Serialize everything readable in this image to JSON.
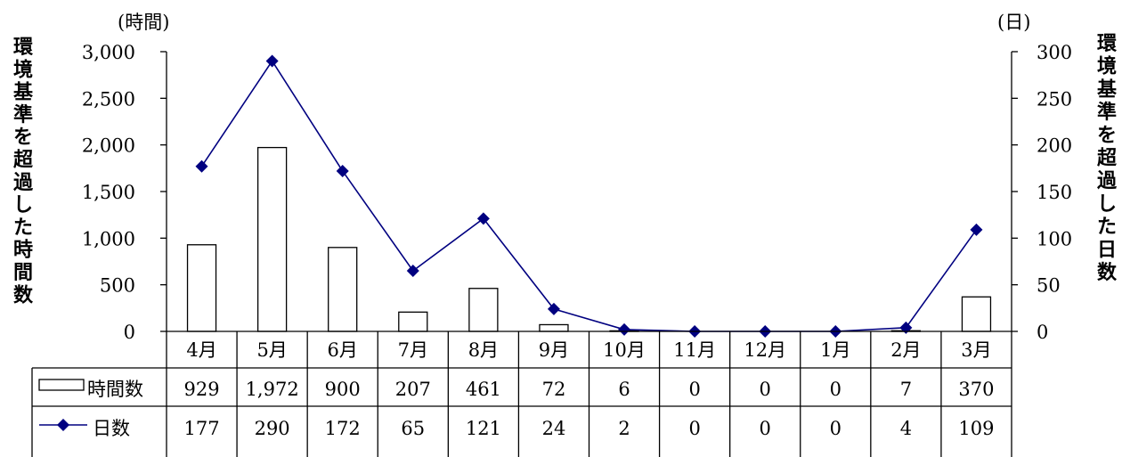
{
  "chart_data": {
    "type": "bar+line",
    "left_unit": "(時間)",
    "right_unit": "(日)",
    "left_axis_label": "環境基準を超過した時間数",
    "right_axis_label": "環境基準を超過した日数",
    "categories": [
      "4月",
      "5月",
      "6月",
      "7月",
      "8月",
      "9月",
      "10月",
      "11月",
      "12月",
      "1月",
      "2月",
      "3月"
    ],
    "series": [
      {
        "name": "時間数",
        "type": "bar",
        "axis": "left",
        "values": [
          929,
          1972,
          900,
          207,
          461,
          72,
          6,
          0,
          0,
          0,
          7,
          370
        ],
        "value_labels": [
          "929",
          "1,972",
          "900",
          "207",
          "461",
          "72",
          "6",
          "0",
          "0",
          "0",
          "7",
          "370"
        ],
        "color": "#ffffff",
        "stroke": "#000000"
      },
      {
        "name": "日数",
        "type": "line",
        "axis": "right",
        "values": [
          177,
          290,
          172,
          65,
          121,
          24,
          2,
          0,
          0,
          0,
          4,
          109
        ],
        "value_labels": [
          "177",
          "290",
          "172",
          "65",
          "121",
          "24",
          "2",
          "0",
          "0",
          "0",
          "4",
          "109"
        ],
        "color": "#000080"
      }
    ],
    "left_ylim": [
      0,
      3000
    ],
    "left_ticks": [
      "0",
      "500",
      "1,000",
      "1,500",
      "2,000",
      "2,500",
      "3,000"
    ],
    "right_ylim": [
      0,
      300
    ],
    "right_ticks": [
      "0",
      "50",
      "100",
      "150",
      "200",
      "250",
      "300"
    ],
    "grid": false,
    "legend": "data-table"
  }
}
